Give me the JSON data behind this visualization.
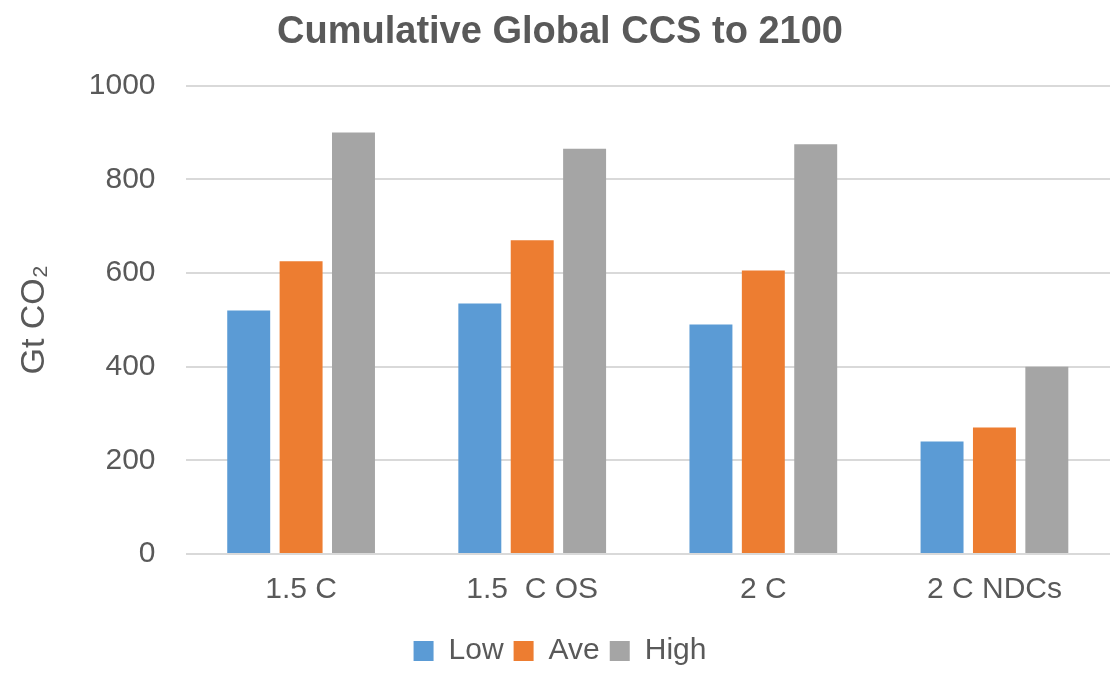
{
  "chart_data": {
    "type": "bar",
    "title": "Cumulative Global CCS to 2100",
    "ylabel": "Gt CO₂",
    "categories": [
      "1.5 C",
      "1.5  C OS",
      "2 C",
      "2 C NDCs"
    ],
    "series": [
      {
        "name": "Low",
        "color": "#5b9bd5",
        "values": [
          520,
          535,
          490,
          240
        ]
      },
      {
        "name": "Ave",
        "color": "#ed7d31",
        "values": [
          625,
          670,
          605,
          270
        ]
      },
      {
        "name": "High",
        "color": "#a5a5a5",
        "values": [
          900,
          865,
          875,
          400
        ]
      }
    ],
    "ylim": [
      0,
      1000
    ],
    "yticks": [
      0,
      200,
      400,
      600,
      800,
      1000
    ],
    "grid": "y",
    "legend": "bottom"
  }
}
